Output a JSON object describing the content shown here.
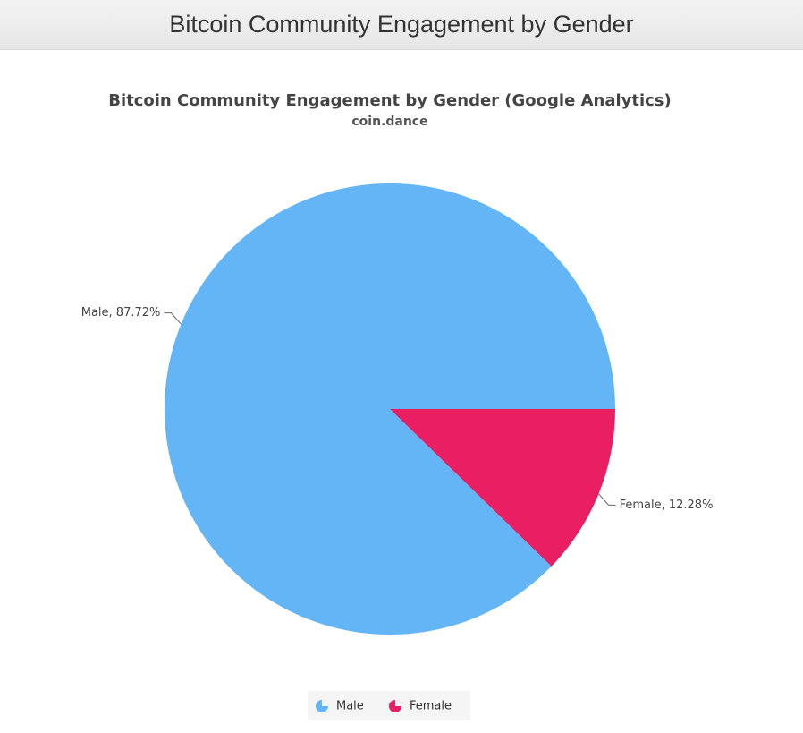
{
  "header": {
    "title": "Bitcoin Community Engagement by Gender"
  },
  "chart_data": {
    "type": "pie",
    "title": "Bitcoin Community Engagement by Gender (Google Analytics)",
    "subtitle": "coin.dance",
    "categories": [
      "Male",
      "Female"
    ],
    "values": [
      87.72,
      12.28
    ],
    "value_labels": [
      "Male, 87.72%",
      "Female, 12.28%"
    ],
    "colors": [
      "#64b5f6",
      "#e91e63"
    ],
    "legend": "bottom"
  }
}
